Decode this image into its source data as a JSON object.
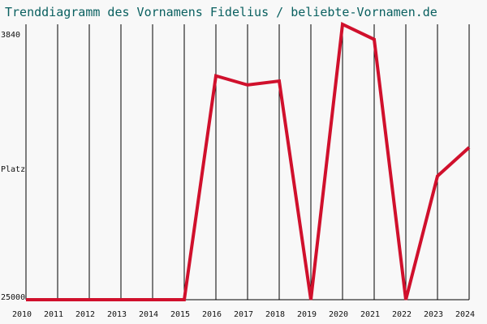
{
  "chart_data": {
    "type": "line",
    "title": "Trenddiagramm des Vornamens Fidelius / beliebte-Vornamen.de",
    "xlabel": "",
    "ylabel": "Platz",
    "x": [
      2010,
      2011,
      2012,
      2013,
      2014,
      2015,
      2016,
      2017,
      2018,
      2019,
      2020,
      2021,
      2022,
      2023,
      2024
    ],
    "series": [
      {
        "values": [
          25000,
          25000,
          25000,
          25000,
          25000,
          25000,
          7800,
          8500,
          8200,
          25000,
          3840,
          5000,
          25000,
          15500,
          13300
        ]
      }
    ],
    "ylim": [
      25000,
      3840
    ],
    "y_tick_labels": [
      "3840",
      "25000"
    ],
    "y_inverted": true,
    "grid": "vertical",
    "colors": {
      "line": "#d0102c",
      "grid": "#000000",
      "title": "#0a6060",
      "background": "#f8f8f8"
    }
  }
}
